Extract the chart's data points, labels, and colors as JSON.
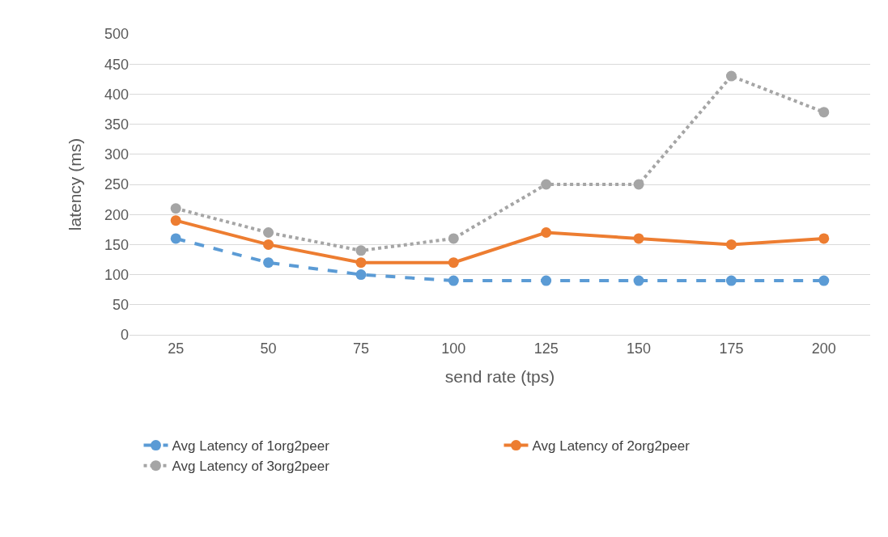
{
  "chart_data": {
    "type": "line",
    "xlabel": "send rate (tps)",
    "ylabel": "latency (ms)",
    "categories": [
      "25",
      "50",
      "75",
      "100",
      "125",
      "150",
      "175",
      "200"
    ],
    "series": [
      {
        "name": "Avg Latency of 1org2peer",
        "color": "#5b9bd5",
        "line_style": "dashed",
        "values": [
          160,
          120,
          100,
          90,
          90,
          90,
          90,
          90
        ]
      },
      {
        "name": "Avg Latency of 2org2peer",
        "color": "#ed7d31",
        "line_style": "solid",
        "values": [
          190,
          150,
          120,
          120,
          170,
          160,
          150,
          160
        ]
      },
      {
        "name": "Avg Latency of 3org2peer",
        "color": "#a5a5a5",
        "line_style": "dotted",
        "values": [
          210,
          170,
          140,
          160,
          250,
          250,
          430,
          370
        ]
      }
    ],
    "ylim": [
      0,
      500
    ],
    "yticks": [
      0,
      50,
      100,
      150,
      200,
      250,
      300,
      350,
      400,
      450,
      500
    ],
    "grid": "y",
    "legend": "bottom",
    "marker": "circle"
  }
}
